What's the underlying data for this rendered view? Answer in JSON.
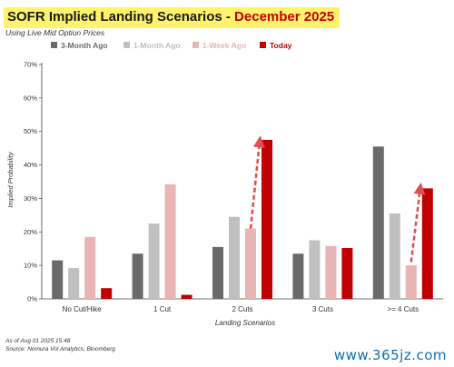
{
  "title_main": "SOFR Implied Landing Scenarios - ",
  "title_accent": "December 2025",
  "subtitle": "Using Live Mid Option Prices",
  "footnote_date": "As of Aug 01 2025 15:48",
  "footnote_source": "Source: Nomura Vol Analytics, Bloomberg",
  "watermark": "www.365jz.com",
  "chart_data": {
    "type": "bar",
    "ylabel": "Implied Probability",
    "xlabel": "Landing Scenarios",
    "ylim": [
      0,
      70
    ],
    "yticks": [
      "0%",
      "10%",
      "20%",
      "30%",
      "40%",
      "50%",
      "60%",
      "70%"
    ],
    "legend_position": "top",
    "grid": false,
    "categories": [
      "No Cut/Hike",
      "1 Cut",
      "2 Cuts",
      "3 Cuts",
      ">= 4 Cuts"
    ],
    "series": [
      {
        "name": "3-Month Ago",
        "color": "#6a6a6a",
        "values": [
          11.5,
          13.5,
          15.5,
          13.5,
          45.5
        ]
      },
      {
        "name": "1-Month Ago",
        "color": "#c0c0c0",
        "values": [
          9.2,
          22.5,
          24.5,
          17.5,
          25.5
        ]
      },
      {
        "name": "1-Week Ago",
        "color": "#e8b4b4",
        "values": [
          18.5,
          34.2,
          21.0,
          15.8,
          10.0
        ]
      },
      {
        "name": "Today",
        "color": "#c00000",
        "values": [
          3.2,
          1.2,
          47.5,
          15.2,
          33.0
        ]
      }
    ],
    "annotations": [
      {
        "type": "arrow",
        "color": "#e05050",
        "category": "2 Cuts",
        "from": 21,
        "to": 47
      },
      {
        "type": "arrow",
        "color": "#e05050",
        "category": ">= 4 Cuts",
        "from": 11,
        "to": 33
      }
    ]
  }
}
